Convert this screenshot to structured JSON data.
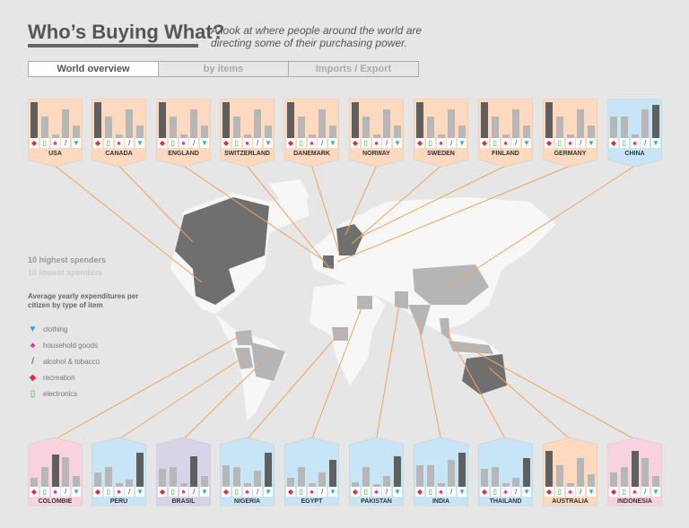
{
  "header": {
    "title": "Who’s Buying What?",
    "subtitle": "A look at where people around the world are directing some of their purchasing power."
  },
  "tabs": [
    {
      "label": "World overview",
      "active": true
    },
    {
      "label": "by items",
      "active": false
    },
    {
      "label": "Imports / Export",
      "active": false
    }
  ],
  "legend": {
    "highest": "10 highest spenders",
    "lowest": "10 lowest spenders",
    "heading": "Average yearly expenditures per citizen by type of item",
    "items": [
      {
        "label": "clothing",
        "icon": "tshirt-icon",
        "color": "#29a8e0"
      },
      {
        "label": "household goods",
        "icon": "lamp-icon",
        "color": "#e8198b"
      },
      {
        "label": "alcohol & tobacco",
        "icon": "bottle-icon",
        "color": "#3a3a9a"
      },
      {
        "label": "recreation",
        "icon": "ticket-icon",
        "color": "#e8283a"
      },
      {
        "label": "electronics",
        "icon": "phone-icon",
        "color": "#3aa84a"
      }
    ]
  },
  "item_order": [
    "recreation",
    "electronics",
    "household goods",
    "alcohol & tobacco",
    "clothing"
  ],
  "tag_colors": {
    "orange": "#fcd9bf",
    "blue": "#c8e5f6",
    "pink": "#f8d2de",
    "lavender": "#d8d3e7",
    "line": "#f0a35e"
  },
  "top_countries": [
    {
      "name": "USA",
      "color": "orange",
      "values": [
        1,
        0.6,
        0.1,
        0.8,
        0.35
      ]
    },
    {
      "name": "CANADA",
      "color": "orange",
      "values": [
        1,
        0.6,
        0.1,
        0.8,
        0.35
      ]
    },
    {
      "name": "ENGLAND",
      "color": "orange",
      "values": [
        1,
        0.6,
        0.1,
        0.8,
        0.35
      ]
    },
    {
      "name": "SWITZERLAND",
      "color": "orange",
      "values": [
        1,
        0.6,
        0.1,
        0.8,
        0.35
      ]
    },
    {
      "name": "DANEMARK",
      "color": "orange",
      "values": [
        1,
        0.6,
        0.1,
        0.8,
        0.35
      ]
    },
    {
      "name": "NORWAY",
      "color": "orange",
      "values": [
        1,
        0.6,
        0.1,
        0.8,
        0.35
      ]
    },
    {
      "name": "SWEDEN",
      "color": "orange",
      "values": [
        1,
        0.6,
        0.1,
        0.8,
        0.35
      ]
    },
    {
      "name": "FINLAND",
      "color": "orange",
      "values": [
        1,
        0.6,
        0.1,
        0.8,
        0.35
      ]
    },
    {
      "name": "GERMANY",
      "color": "orange",
      "values": [
        1,
        0.6,
        0.1,
        0.8,
        0.35
      ]
    },
    {
      "name": "CHINA",
      "color": "blue",
      "values": [
        0.6,
        0.6,
        0.1,
        0.8,
        0.92
      ]
    }
  ],
  "bottom_countries": [
    {
      "name": "COLOMBIE",
      "color": "pink",
      "values": [
        0.25,
        0.55,
        0.9,
        0.83,
        0.3
      ]
    },
    {
      "name": "PERU",
      "color": "blue",
      "values": [
        0.4,
        0.55,
        0.1,
        0.2,
        0.95
      ]
    },
    {
      "name": "BRASIL",
      "color": "lavender",
      "values": [
        0.5,
        0.55,
        0.1,
        0.85,
        0.3
      ]
    },
    {
      "name": "NIGERIA",
      "color": "blue",
      "values": [
        0.6,
        0.55,
        0.1,
        0.45,
        0.95
      ]
    },
    {
      "name": "EGYPT",
      "color": "blue",
      "values": [
        0.25,
        0.55,
        0.1,
        0.4,
        0.75
      ]
    },
    {
      "name": "PAKISTAN",
      "color": "blue",
      "values": [
        0.12,
        0.55,
        0.08,
        0.3,
        0.85
      ]
    },
    {
      "name": "INDIA",
      "color": "blue",
      "values": [
        0.6,
        0.6,
        0.1,
        0.75,
        0.95
      ]
    },
    {
      "name": "THAILAND",
      "color": "blue",
      "values": [
        0.5,
        0.55,
        0.1,
        0.25,
        0.8
      ]
    },
    {
      "name": "AUSTRALIA",
      "color": "orange",
      "values": [
        1,
        0.6,
        0.1,
        0.8,
        0.35
      ]
    },
    {
      "name": "INDONESIA",
      "color": "pink",
      "values": [
        0.4,
        0.55,
        1,
        0.8,
        0.3
      ]
    }
  ]
}
